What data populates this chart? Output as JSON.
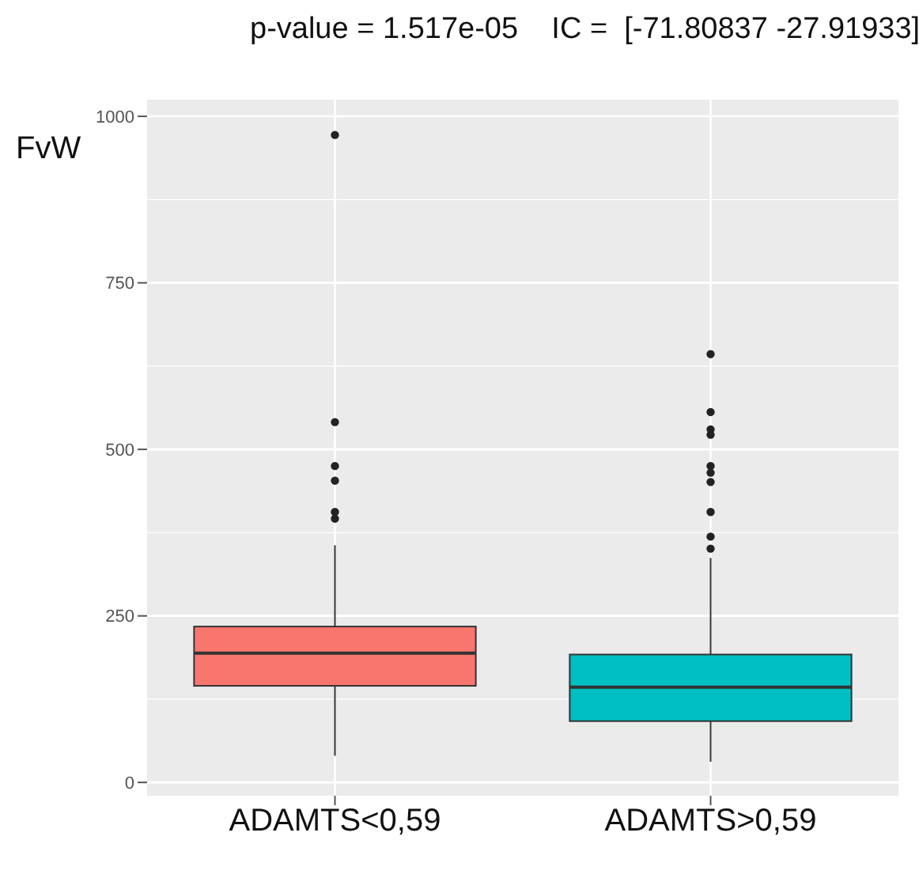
{
  "chart_data": {
    "type": "box",
    "title": "p-value = 1.517e-05    IC =  [-71.80837 -27.91933]",
    "ylabel": "FvW",
    "categories": [
      "ADAMTS<0,59",
      "ADAMTS>0,59"
    ],
    "series": [
      {
        "colors": [
          "#f8766d",
          "#00bfc4"
        ],
        "boxes": [
          {
            "low": 40,
            "q1": 145,
            "median": 194,
            "q3": 234,
            "high": 356,
            "outliers": [
              972,
              541,
              475,
              453,
              406,
              396
            ]
          },
          {
            "low": 31,
            "q1": 92,
            "median": 143,
            "q3": 192,
            "high": 337,
            "outliers": [
              643,
              556,
              530,
              522,
              475,
              465,
              451,
              406,
              369,
              351
            ]
          }
        ]
      }
    ],
    "ylim": [
      -20,
      1025
    ],
    "yticks": [
      0,
      250,
      500,
      750,
      1000
    ],
    "grid": true
  }
}
